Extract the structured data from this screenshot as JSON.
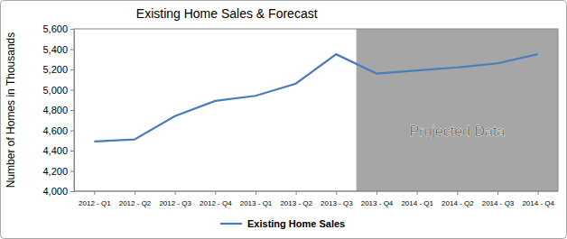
{
  "chart_data": {
    "type": "line",
    "title": "Existing Home Sales & Forecast",
    "y_label": "Number of Homes in Thousands",
    "categories": [
      "2012 - Q1",
      "2012 - Q2",
      "2012 - Q3",
      "2012 - Q4",
      "2013 - Q1",
      "2013 - Q2",
      "2013 - Q3",
      "2013 - Q4",
      "2014 - Q1",
      "2014 - Q2",
      "2014 - Q3",
      "2014 - Q4"
    ],
    "series": [
      {
        "name": "Existing Home Sales",
        "color": "#4a7ebb",
        "values": [
          4490,
          4510,
          4740,
          4890,
          4940,
          5060,
          5350,
          5160,
          5190,
          5220,
          5260,
          5350
        ]
      }
    ],
    "ylim": [
      4000,
      5600
    ],
    "yticks": [
      {
        "value": 4000,
        "label": "4,000"
      },
      {
        "value": 4200,
        "label": "4,200"
      },
      {
        "value": 4400,
        "label": "4,400"
      },
      {
        "value": 4600,
        "label": "4,600"
      },
      {
        "value": 4800,
        "label": "4,800"
      },
      {
        "value": 5000,
        "label": "5,000"
      },
      {
        "value": 5200,
        "label": "5,200"
      },
      {
        "value": 5400,
        "label": "5,400"
      },
      {
        "value": 5600,
        "label": "5,600"
      }
    ],
    "annotations": [
      {
        "text": "Projected Data",
        "x": "2013 - Q4"
      }
    ],
    "grid": false,
    "legend": "bottom"
  }
}
